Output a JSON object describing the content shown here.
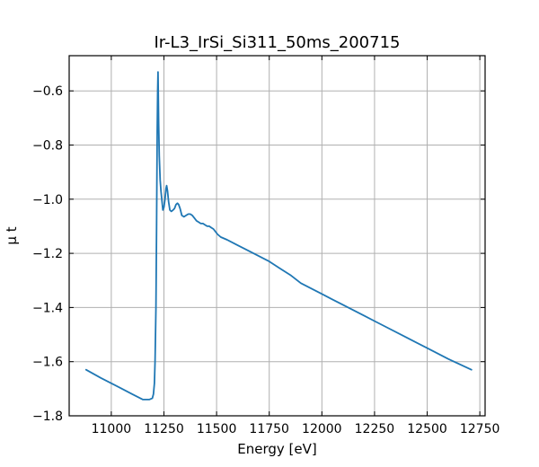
{
  "chart_data": {
    "type": "line",
    "title": "Ir-L3_IrSi_Si311_50ms_200715",
    "xlabel": "Energy [eV]",
    "ylabel": "μ t",
    "xlim": [
      10800,
      12775
    ],
    "ylim": [
      -1.8,
      -0.47
    ],
    "xticks": [
      11000,
      11250,
      11500,
      11750,
      12000,
      12250,
      12500,
      12750
    ],
    "yticks": [
      -1.8,
      -1.6,
      -1.4,
      -1.2,
      -1.0,
      -0.8,
      -0.6
    ],
    "xtick_labels": [
      "11000",
      "11250",
      "11500",
      "11750",
      "12000",
      "12250",
      "12500",
      "12750"
    ],
    "ytick_labels": [
      "−1.8",
      "−1.6",
      "−1.4",
      "−1.2",
      "−1.0",
      "−0.8",
      "−0.6"
    ],
    "grid": true,
    "color": "#1f77b4",
    "series": [
      {
        "x": [
          10880,
          10950,
          11000,
          11050,
          11100,
          11150,
          11180,
          11195,
          11200,
          11205,
          11208,
          11212,
          11215,
          11218,
          11220,
          11222,
          11225,
          11228,
          11232,
          11236,
          11240,
          11245,
          11250,
          11255,
          11260,
          11263,
          11267,
          11272,
          11278,
          11285,
          11293,
          11300,
          11307,
          11314,
          11320,
          11327,
          11335,
          11345,
          11355,
          11365,
          11375,
          11385,
          11395,
          11405,
          11415,
          11425,
          11435,
          11445,
          11455,
          11465,
          11475,
          11485,
          11495,
          11505,
          11520,
          11550,
          11600,
          11650,
          11700,
          11750,
          11800,
          11850,
          11900,
          11950,
          12000,
          12050,
          12100,
          12150,
          12200,
          12250,
          12300,
          12400,
          12500,
          12600,
          12710
        ],
        "y": [
          -1.63,
          -1.66,
          -1.68,
          -1.7,
          -1.72,
          -1.74,
          -1.74,
          -1.735,
          -1.72,
          -1.68,
          -1.6,
          -1.4,
          -1.1,
          -0.75,
          -0.6,
          -0.53,
          -0.72,
          -0.84,
          -0.93,
          -0.97,
          -1.0,
          -1.04,
          -1.03,
          -1.0,
          -0.96,
          -0.95,
          -0.97,
          -1.01,
          -1.04,
          -1.045,
          -1.04,
          -1.035,
          -1.02,
          -1.015,
          -1.02,
          -1.035,
          -1.06,
          -1.065,
          -1.06,
          -1.055,
          -1.055,
          -1.06,
          -1.07,
          -1.08,
          -1.085,
          -1.09,
          -1.09,
          -1.095,
          -1.1,
          -1.1,
          -1.105,
          -1.11,
          -1.12,
          -1.13,
          -1.14,
          -1.15,
          -1.17,
          -1.19,
          -1.21,
          -1.23,
          -1.255,
          -1.28,
          -1.31,
          -1.33,
          -1.35,
          -1.37,
          -1.39,
          -1.41,
          -1.43,
          -1.45,
          -1.47,
          -1.51,
          -1.55,
          -1.59,
          -1.63
        ]
      }
    ]
  }
}
